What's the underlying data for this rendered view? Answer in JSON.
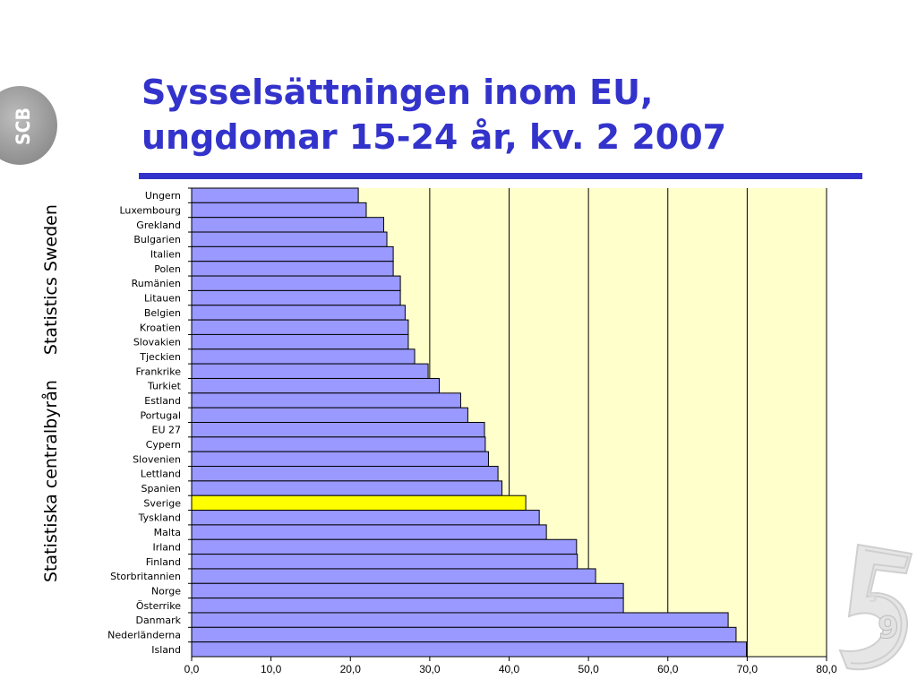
{
  "logo": {
    "text": "SCB"
  },
  "side_text": {
    "part1": "Statistiska centralbyrån",
    "part2": "Statistics Sweden"
  },
  "title": {
    "line1": "Sysselsättningen inom EU,",
    "line2": "ungdomar 15-24 år, kv. 2 2007"
  },
  "colors": {
    "bar": "#9999ff",
    "highlight": "#ffff00",
    "plot_bg": "#ffffcc",
    "title": "#3333cc"
  },
  "chart_data": {
    "type": "bar",
    "orientation": "horizontal",
    "title": "Sysselsättningen inom EU, ungdomar 15-24 år, kv. 2 2007",
    "xlabel": "",
    "ylabel": "",
    "xlim": [
      0,
      80
    ],
    "x_ticks": [
      "0,0",
      "10,0",
      "20,0",
      "30,0",
      "40,0",
      "50,0",
      "60,0",
      "70,0",
      "80,0"
    ],
    "grid": "vertical",
    "highlight": "Sverige",
    "categories": [
      "Ungern",
      "Luxembourg",
      "Grekland",
      "Bulgarien",
      "Italien",
      "Polen",
      "Rumänien",
      "Litauen",
      "Belgien",
      "Kroatien",
      "Slovakien",
      "Tjeckien",
      "Frankrike",
      "Turkiet",
      "Estland",
      "Portugal",
      "EU 27",
      "Cypern",
      "Slovenien",
      "Lettland",
      "Spanien",
      "Sverige",
      "Tyskland",
      "Malta",
      "Irland",
      "Finland",
      "Storbritannien",
      "Norge",
      "Österrike",
      "Danmark",
      "Nederländerna",
      "Island"
    ],
    "values": [
      21.0,
      22.0,
      24.2,
      24.6,
      25.4,
      25.4,
      26.3,
      26.3,
      26.9,
      27.3,
      27.3,
      28.1,
      29.8,
      31.2,
      33.9,
      34.8,
      36.9,
      37.0,
      37.4,
      38.6,
      39.1,
      42.1,
      43.8,
      44.7,
      48.5,
      48.6,
      50.9,
      54.4,
      54.4,
      67.6,
      68.6,
      69.9
    ]
  }
}
